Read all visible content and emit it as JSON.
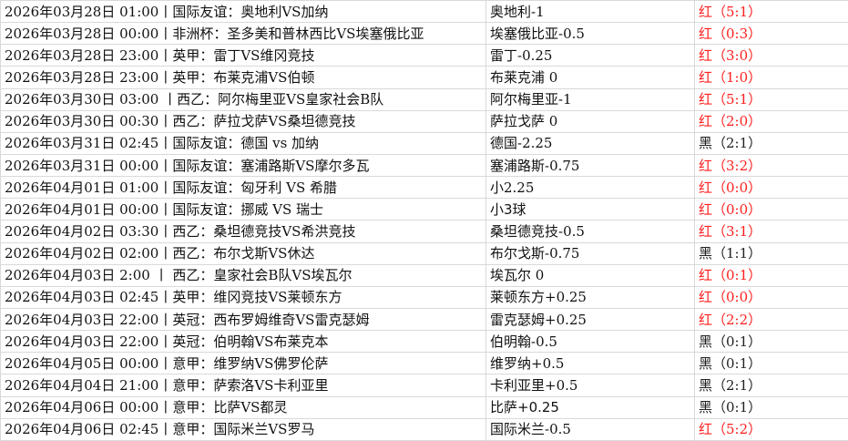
{
  "colors": {
    "win": "#ff2020",
    "loss": "#222222",
    "grid": "#d9d9d9"
  },
  "rows": [
    {
      "match": "2026年03月28日 01:00丨国际友谊：奥地利VS加纳",
      "pick": "奥地利-1",
      "result": "红（5:1）",
      "status": "red"
    },
    {
      "match": "2026年03月28日 00:00丨非洲杯：圣多美和普林西比VS埃塞俄比亚",
      "pick": "埃塞俄比亚-0.5",
      "result": "红（0:3）",
      "status": "red"
    },
    {
      "match": "2026年03月28日 23:00丨英甲：雷丁VS维冈竞技",
      "pick": "雷丁-0.25",
      "result": "红（3:0）",
      "status": "red"
    },
    {
      "match": "2026年03月28日 23:00丨英甲：布莱克浦VS伯顿",
      "pick": "布莱克浦 0",
      "result": "红（1:0）",
      "status": "red"
    },
    {
      "match": "2026年03月30日 03:00 丨西乙：阿尔梅里亚VS皇家社会B队",
      "pick": "阿尔梅里亚-1",
      "result": "红（5:1）",
      "status": "red"
    },
    {
      "match": "2026年03月30日 00:30丨西乙：萨拉戈萨VS桑坦德竞技",
      "pick": "萨拉戈萨 0",
      "result": "红（2:0）",
      "status": "red"
    },
    {
      "match": "2026年03月31日 02:45丨国际友谊：德国 vs 加纳",
      "pick": "德国-2.25",
      "result": "黑（2:1）",
      "status": "black"
    },
    {
      "match": "2026年03月31日 00:00丨国际友谊：塞浦路斯VS摩尔多瓦",
      "pick": "塞浦路斯-0.75",
      "result": "红（3:2）",
      "status": "red"
    },
    {
      "match": "2026年04月01日 01:00丨国际友谊：匈牙利 VS 希腊",
      "pick": "小2.25",
      "result": "红（0:0）",
      "status": "red"
    },
    {
      "match": "2026年04月01日 00:00丨国际友谊：挪威 VS 瑞士",
      "pick": "小3球",
      "result": "红（0:0）",
      "status": "red",
      "sans": true
    },
    {
      "match": "2026年04月02日 03:30丨西乙：桑坦德竞技VS希洪竞技",
      "pick": "桑坦德竞技-0.5",
      "result": "红（3:1）",
      "status": "red"
    },
    {
      "match": "2026年04月02日 02:00丨西乙：布尔戈斯VS休达",
      "pick": "布尔戈斯-0.75",
      "result": "黑（1:1）",
      "status": "black"
    },
    {
      "match": "2026年04月03日 2:00 丨 西乙：皇家社会B队VS埃瓦尔",
      "pick": "埃瓦尔 0",
      "result": "红（0:1）",
      "status": "red"
    },
    {
      "match": "2026年04月03日 02:45丨英甲：维冈竞技VS莱顿东方",
      "pick": "莱顿东方+0.25",
      "result": "红（0:0）",
      "status": "red"
    },
    {
      "match": "2026年04月03日 22:00丨英冠：西布罗姆维奇VS雷克瑟姆",
      "pick": "雷克瑟姆+0.25",
      "result": "红（2:2）",
      "status": "red"
    },
    {
      "match": "2026年04月03日 22:00丨英冠：伯明翰VS布莱克本",
      "pick": "伯明翰-0.5",
      "result": "黑（0:1）",
      "status": "black"
    },
    {
      "match": "2026年04月05日 00:00丨意甲：维罗纳VS佛罗伦萨",
      "pick": "维罗纳+0.5",
      "result": "黑（0:1）",
      "status": "black"
    },
    {
      "match": "2026年04月04日 21:00丨意甲：萨索洛VS卡利亚里",
      "pick": "卡利亚里+0.5",
      "result": "黑（2:1）",
      "status": "black"
    },
    {
      "match": "2026年04月06日 00:00丨意甲：比萨VS都灵",
      "pick": "比萨+0.25",
      "result": "黑（0:1）",
      "status": "black",
      "sans": true
    },
    {
      "match": "2026年04月06日 02:45丨意甲：国际米兰VS罗马",
      "pick": "国际米兰-0.5",
      "result": "红（5:2）",
      "status": "red"
    }
  ]
}
